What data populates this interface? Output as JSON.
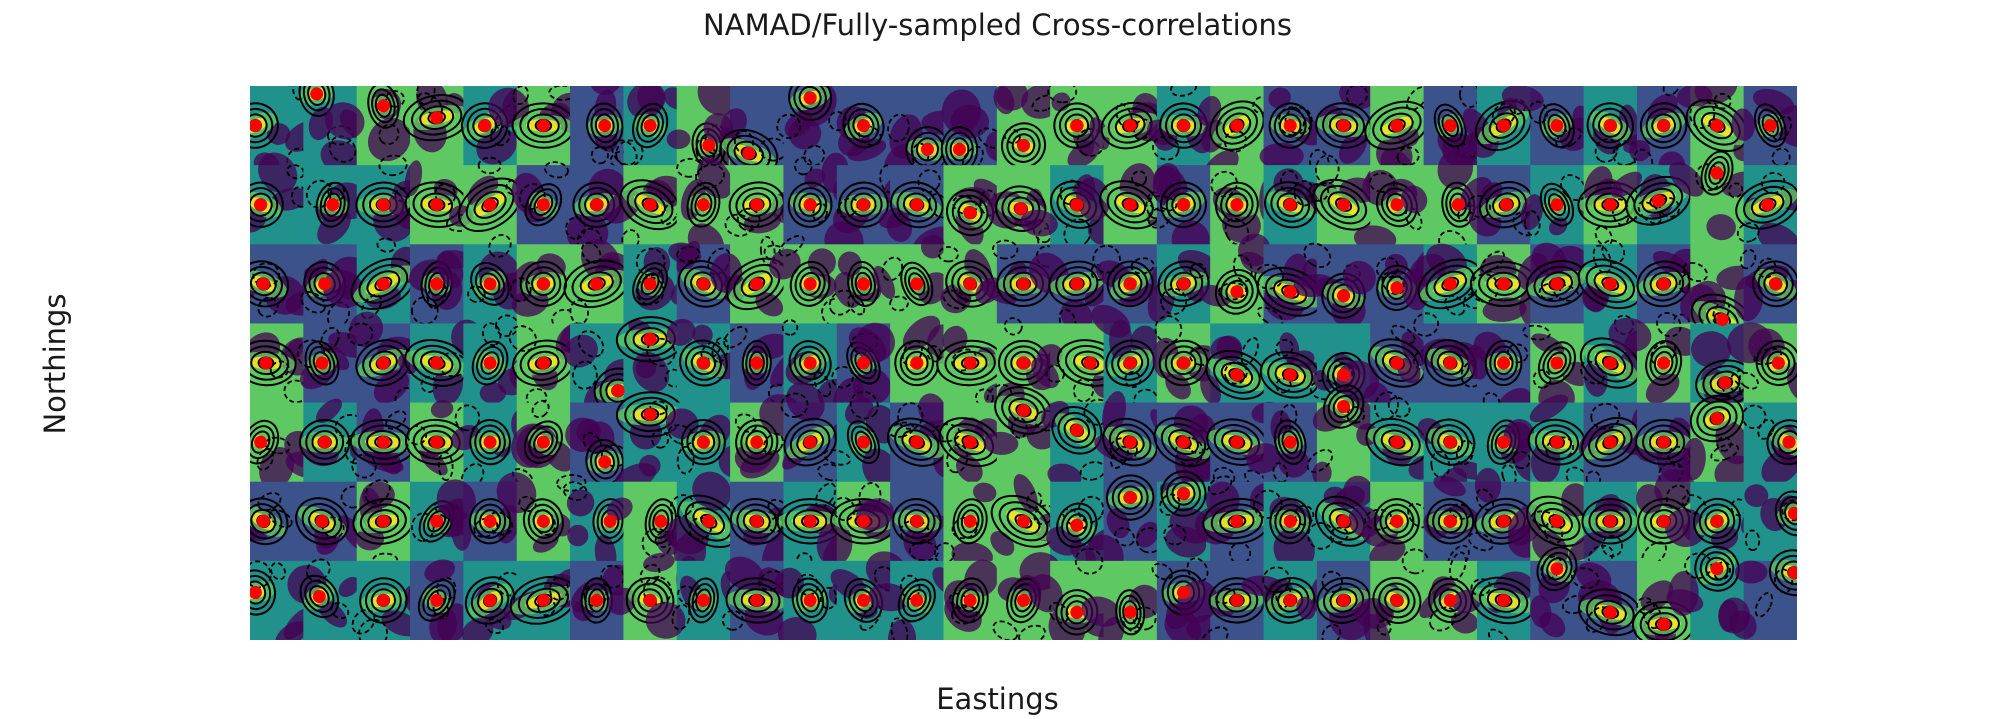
{
  "chart_data": {
    "type": "heatmap",
    "title": "NAMAD/Fully-sampled Cross-correlations",
    "xlabel": "Eastings",
    "ylabel": "Northings",
    "grid": false,
    "legend": "none",
    "colormap": [
      "#440154",
      "#3b528b",
      "#21918c",
      "#5ec962",
      "#fde725"
    ],
    "contour_color": "#000000",
    "peak_marker_color": "#ff0000",
    "tiles": {
      "rows": 7,
      "cols": 29,
      "peak_offset_x": [
        [
          -0.8,
          -0.5,
          0.0,
          0.0,
          -0.2,
          0.0,
          0.3,
          0.0,
          0.2,
          -0.3,
          0.0,
          0.0,
          0.4,
          -0.4,
          0.0,
          0.0,
          0.0,
          0.0,
          0.0,
          0.0,
          0.0,
          0.0,
          0.0,
          0.0,
          0.0,
          0.0,
          0.0,
          0.0,
          0.0
        ],
        [
          -0.6,
          0.1,
          0.0,
          0.0,
          0.0,
          0.0,
          0.0,
          0.0,
          0.0,
          0.0,
          0.0,
          0.0,
          0.0,
          0.0,
          -0.1,
          0.0,
          0.0,
          0.0,
          0.0,
          0.0,
          0.0,
          0.0,
          0.3,
          0.1,
          0.0,
          0.0,
          -0.2,
          0.0,
          -0.1
        ],
        [
          -0.5,
          -0.2,
          0.0,
          0.0,
          0.0,
          0.0,
          0.0,
          0.0,
          0.0,
          0.0,
          0.0,
          0.0,
          0.0,
          0.0,
          0.0,
          0.0,
          0.0,
          0.0,
          0.0,
          0.0,
          0.0,
          0.0,
          0.0,
          0.0,
          0.0,
          0.0,
          0.0,
          0.2,
          0.2
        ],
        [
          -0.4,
          -0.3,
          0.0,
          0.0,
          0.0,
          0.0,
          0.8,
          0.0,
          0.0,
          0.0,
          0.0,
          0.0,
          0.0,
          0.0,
          0.0,
          0.5,
          0.0,
          0.0,
          0.0,
          0.0,
          0.0,
          0.0,
          0.0,
          0.0,
          0.0,
          0.0,
          0.0,
          0.3,
          0.3
        ],
        [
          -0.6,
          -0.2,
          0.0,
          0.0,
          0.0,
          0.0,
          0.3,
          0.0,
          0.0,
          0.0,
          0.0,
          0.0,
          0.0,
          0.0,
          0.0,
          0.0,
          0.0,
          0.0,
          0.0,
          0.0,
          0.0,
          0.0,
          0.0,
          0.0,
          0.0,
          0.0,
          0.0,
          0.0,
          0.7
        ],
        [
          -0.5,
          -0.3,
          0.0,
          0.0,
          0.0,
          0.0,
          0.5,
          0.4,
          0.2,
          0.0,
          0.0,
          0.0,
          0.0,
          0.0,
          0.0,
          0.0,
          0.0,
          0.0,
          0.0,
          0.0,
          0.0,
          0.0,
          0.0,
          0.0,
          0.0,
          0.0,
          0.0,
          0.0,
          0.9
        ],
        [
          -0.8,
          -0.4,
          0.0,
          0.0,
          0.0,
          0.0,
          0.0,
          0.0,
          0.0,
          0.0,
          0.0,
          0.0,
          0.0,
          0.0,
          0.0,
          0.0,
          0.0,
          0.0,
          0.0,
          0.0,
          0.0,
          0.0,
          0.0,
          0.0,
          0.0,
          0.0,
          0.0,
          0.0,
          0.9
        ]
      ],
      "peak_offset_y": [
        [
          0.0,
          -0.8,
          -0.5,
          -0.2,
          0.0,
          0.0,
          0.0,
          0.0,
          0.5,
          0.7,
          -0.7,
          0.0,
          0.6,
          0.6,
          0.5,
          0.0,
          0.0,
          0.0,
          0.0,
          0.0,
          0.0,
          0.0,
          0.0,
          0.0,
          0.0,
          0.0,
          0.0,
          0.0,
          0.0
        ],
        [
          0.0,
          0.0,
          0.0,
          0.0,
          0.0,
          0.0,
          0.0,
          0.0,
          0.0,
          0.0,
          0.0,
          0.0,
          0.0,
          0.2,
          0.1,
          0.0,
          0.0,
          0.0,
          0.0,
          0.0,
          0.0,
          0.0,
          0.0,
          0.0,
          0.0,
          0.0,
          -0.1,
          -0.8,
          0.0
        ],
        [
          0.0,
          0.0,
          0.0,
          0.0,
          0.0,
          0.0,
          0.0,
          0.0,
          0.0,
          0.0,
          0.0,
          0.0,
          0.0,
          0.0,
          0.0,
          0.0,
          0.0,
          0.0,
          0.2,
          0.2,
          0.3,
          0.1,
          0.0,
          0.0,
          0.0,
          0.0,
          0.0,
          0.9,
          0.0
        ],
        [
          0.0,
          0.0,
          0.0,
          0.0,
          0.0,
          0.0,
          0.7,
          -0.6,
          0.0,
          0.0,
          0.0,
          0.0,
          0.0,
          0.0,
          0.0,
          0.0,
          0.0,
          0.0,
          0.3,
          0.3,
          0.3,
          0.0,
          0.0,
          0.0,
          0.0,
          0.0,
          0.0,
          0.5,
          0.0
        ],
        [
          0.0,
          0.0,
          0.0,
          0.0,
          0.0,
          0.0,
          0.5,
          -0.7,
          0.0,
          0.0,
          0.0,
          0.0,
          0.0,
          0.0,
          -0.8,
          -0.3,
          0.0,
          0.0,
          0.0,
          0.0,
          -0.9,
          0.0,
          0.0,
          0.0,
          0.0,
          0.0,
          0.0,
          -0.6,
          0.0
        ],
        [
          0.0,
          0.0,
          0.0,
          0.0,
          0.0,
          0.0,
          0.0,
          0.0,
          0.0,
          0.0,
          0.0,
          0.0,
          0.0,
          0.0,
          0.0,
          0.1,
          -0.6,
          -0.7,
          0.0,
          0.0,
          0.0,
          0.0,
          0.0,
          0.0,
          0.0,
          0.0,
          0.0,
          0.0,
          -0.2
        ],
        [
          -0.2,
          -0.1,
          0.0,
          0.0,
          0.0,
          0.0,
          0.0,
          0.0,
          0.0,
          0.0,
          0.0,
          0.0,
          0.0,
          0.0,
          0.0,
          0.3,
          0.3,
          -0.2,
          0.0,
          0.0,
          0.0,
          0.0,
          0.0,
          0.0,
          -0.8,
          0.3,
          0.6,
          -0.8,
          -0.7
        ]
      ]
    }
  }
}
